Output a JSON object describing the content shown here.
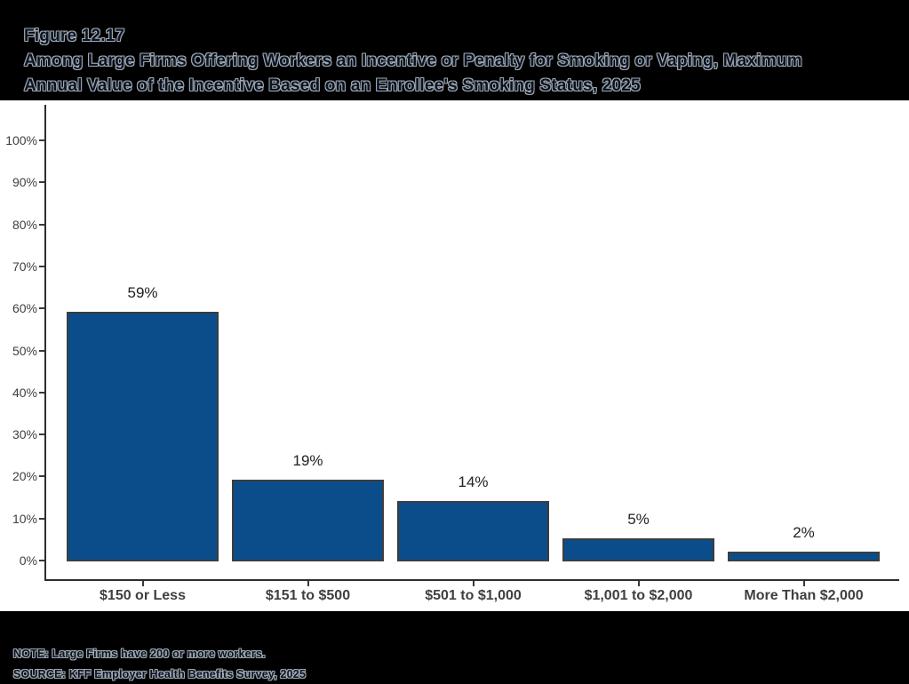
{
  "header": {
    "figure_label": "Figure 12.17",
    "title_line1": "Among Large Firms Offering Workers an Incentive or Penalty for Smoking or Vaping, Maximum",
    "title_line2": "Annual Value of the Incentive Based on an Enrollee's Smoking Status, 2025"
  },
  "chart_data": {
    "type": "bar",
    "title": "Among Large Firms Offering Workers an Incentive or Penalty for Smoking or Vaping, Maximum Annual Value of the Incentive Based on an Enrollee's Smoking Status, 2025",
    "categories": [
      "$150 or Less",
      "$151 to $500",
      "$501 to $1,000",
      "$1,001 to $2,000",
      "More Than $2,000"
    ],
    "values": [
      59,
      19,
      14,
      5,
      2
    ],
    "value_labels": [
      "59%",
      "19%",
      "14%",
      "5%",
      "2%"
    ],
    "xlabel": "",
    "ylabel": "",
    "ylim": [
      0,
      100
    ],
    "y_tick_labels": [
      "0%",
      "10%",
      "20%",
      "30%",
      "40%",
      "50%",
      "60%",
      "70%",
      "80%",
      "90%",
      "100%"
    ],
    "grid": false,
    "legend": "none",
    "bar_color": "#0B4D8A",
    "bar_border_color": "#3D3D3D",
    "axis_color": "#2E2E2E"
  },
  "footer": {
    "note": "NOTE: Large Firms have 200 or more workers.",
    "source": "SOURCE: KFF Employer Health Benefits Survey, 2025"
  }
}
